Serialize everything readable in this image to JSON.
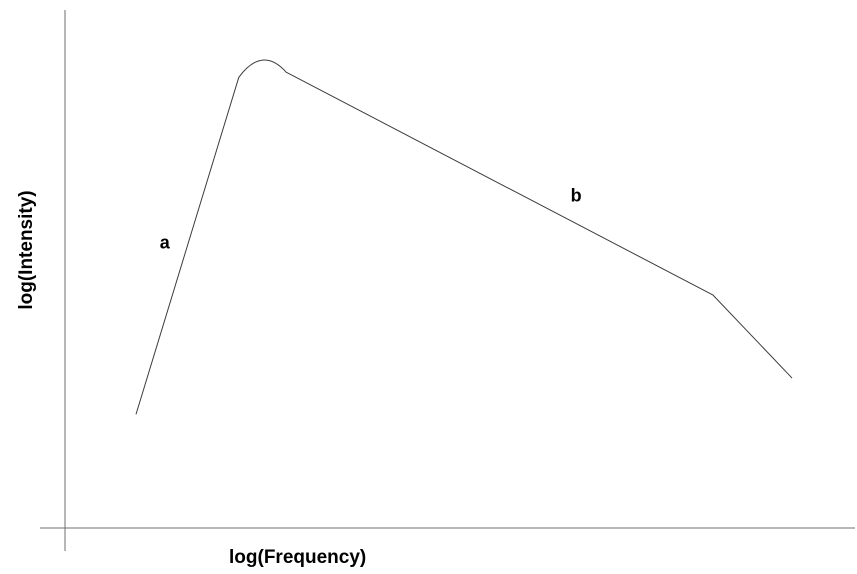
{
  "chart_data": {
    "type": "line",
    "title": "",
    "xlabel": "log(Frequency)",
    "ylabel": "log(Intensity)",
    "x_scale": "log",
    "y_scale": "log",
    "grid": false,
    "legend": "none",
    "tick_labels": false,
    "series": [
      {
        "x": [
          0.09,
          0.22,
          0.25,
          0.28,
          0.82,
          0.92
        ],
        "y": [
          0.22,
          0.87,
          0.92,
          0.88,
          0.45,
          0.29
        ]
      }
    ],
    "annotations": [
      {
        "text": "a",
        "x": 0.12,
        "y": 0.54
      },
      {
        "text": "b",
        "x": 0.64,
        "y": 0.63
      }
    ],
    "line_color": "#3c3c3c",
    "axis_color": "#6f6f6f"
  }
}
